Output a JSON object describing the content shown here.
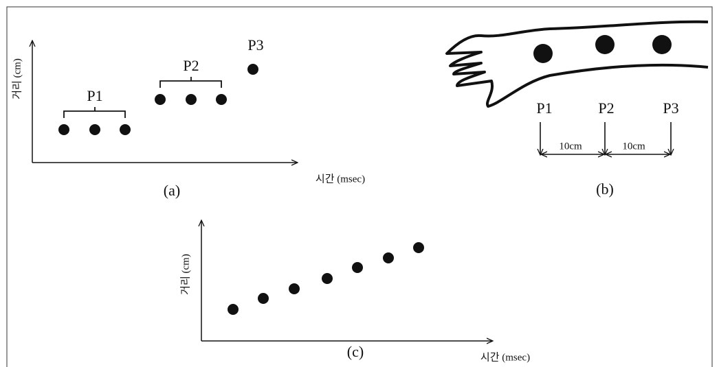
{
  "panels": [
    {
      "caption": "(a)",
      "y_label": "거리 (cm)",
      "x_label": "시간 (msec)",
      "groups": [
        "P1",
        "P2",
        "P3"
      ]
    },
    {
      "caption": "(b)",
      "points": [
        "P1",
        "P2",
        "P3"
      ],
      "distances": [
        "10cm",
        "10cm"
      ]
    },
    {
      "caption": "(c)",
      "y_label": "거리 (cm)",
      "x_label": "시간 (msec)"
    }
  ]
}
